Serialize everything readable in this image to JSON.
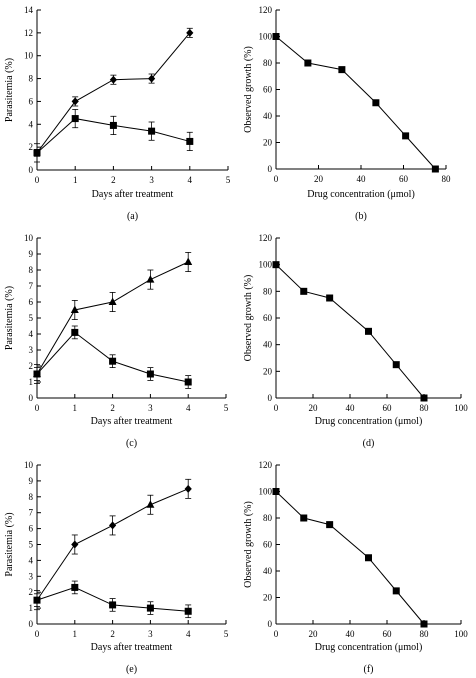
{
  "chart_data": [
    {
      "label": "(a)",
      "type": "line",
      "xlabel": "Days after treatment",
      "ylabel": "Parasitemia (%)",
      "xlim": [
        0,
        5
      ],
      "ylim": [
        0,
        14
      ],
      "xticks": [
        0,
        1,
        2,
        3,
        4,
        5
      ],
      "yticks": [
        0,
        2,
        4,
        6,
        8,
        10,
        12,
        14
      ],
      "series": [
        {
          "marker": "diamond",
          "x": [
            0,
            1,
            2,
            3,
            4
          ],
          "y": [
            1.5,
            6.0,
            7.9,
            8.0,
            12.0
          ],
          "err": [
            0.3,
            0.4,
            0.4,
            0.4,
            0.4
          ]
        },
        {
          "marker": "square",
          "x": [
            0,
            1,
            2,
            3,
            4
          ],
          "y": [
            1.5,
            4.5,
            3.9,
            3.4,
            2.5
          ],
          "err": [
            0.8,
            0.8,
            0.8,
            0.8,
            0.8
          ]
        }
      ]
    },
    {
      "label": "(b)",
      "type": "line",
      "xlabel": "Drug concentration (μmol)",
      "ylabel": "Observed growth (%)",
      "xlim": [
        0,
        80
      ],
      "ylim": [
        0,
        120
      ],
      "xticks": [
        0,
        20,
        40,
        60,
        80
      ],
      "yticks": [
        0,
        20,
        40,
        60,
        80,
        100,
        120
      ],
      "series": [
        {
          "marker": "square",
          "x": [
            0,
            15,
            31,
            47,
            61,
            75
          ],
          "y": [
            100,
            80,
            75,
            50,
            25,
            0
          ]
        }
      ]
    },
    {
      "label": "(c)",
      "type": "line",
      "xlabel": "Days after treatment",
      "ylabel": "Parasitemia (%)",
      "xlim": [
        0,
        5
      ],
      "ylim": [
        0,
        10
      ],
      "xticks": [
        0,
        1,
        2,
        3,
        4,
        5
      ],
      "yticks": [
        0,
        1,
        2,
        3,
        4,
        5,
        6,
        7,
        8,
        9,
        10
      ],
      "series": [
        {
          "marker": "triangle",
          "x": [
            0,
            1,
            2,
            3,
            4
          ],
          "y": [
            1.5,
            5.5,
            6.0,
            7.4,
            8.5
          ],
          "err": [
            0.6,
            0.6,
            0.6,
            0.6,
            0.6
          ]
        },
        {
          "marker": "square",
          "x": [
            0,
            1,
            2,
            3,
            4
          ],
          "y": [
            1.5,
            4.1,
            2.3,
            1.5,
            1.0
          ],
          "err": [
            0.4,
            0.4,
            0.4,
            0.4,
            0.4
          ]
        }
      ]
    },
    {
      "label": "(d)",
      "type": "line",
      "xlabel": "Drug concentration (μmol)",
      "ylabel": "Observed growth (%)",
      "xlim": [
        0,
        100
      ],
      "ylim": [
        0,
        120
      ],
      "xticks": [
        0,
        20,
        40,
        60,
        80,
        100
      ],
      "yticks": [
        0,
        20,
        40,
        60,
        80,
        100,
        120
      ],
      "series": [
        {
          "marker": "square",
          "x": [
            0,
            15,
            29,
            50,
            65,
            80
          ],
          "y": [
            100,
            80,
            75,
            50,
            25,
            0
          ]
        }
      ]
    },
    {
      "label": "(e)",
      "type": "line",
      "xlabel": "Days after treatment",
      "ylabel": "Parasitemia (%)",
      "xlim": [
        0,
        5
      ],
      "ylim": [
        0,
        10
      ],
      "xticks": [
        0,
        1,
        2,
        3,
        4,
        5
      ],
      "yticks": [
        0,
        1,
        2,
        3,
        4,
        5,
        6,
        7,
        8,
        9,
        10
      ],
      "series": [
        {
          "marker": "mixed",
          "markers": [
            "diamond",
            "diamond",
            "diamond",
            "triangle",
            "diamond"
          ],
          "x": [
            0,
            1,
            2,
            3,
            4
          ],
          "y": [
            1.5,
            5.0,
            6.2,
            7.5,
            8.5
          ],
          "err": [
            0.6,
            0.6,
            0.6,
            0.6,
            0.6
          ]
        },
        {
          "marker": "square",
          "x": [
            0,
            1,
            2,
            3,
            4
          ],
          "y": [
            1.5,
            2.3,
            1.2,
            1.0,
            0.8
          ],
          "err": [
            0.4,
            0.4,
            0.4,
            0.4,
            0.4
          ]
        }
      ]
    },
    {
      "label": "(f)",
      "type": "line",
      "xlabel": "Drug concentration (μmol)",
      "ylabel": "Observed growth (%)",
      "xlim": [
        0,
        100
      ],
      "ylim": [
        0,
        120
      ],
      "xticks": [
        0,
        20,
        40,
        60,
        80,
        100
      ],
      "yticks": [
        0,
        20,
        40,
        60,
        80,
        100,
        120
      ],
      "series": [
        {
          "marker": "square",
          "x": [
            0,
            15,
            29,
            50,
            65,
            80
          ],
          "y": [
            100,
            80,
            75,
            50,
            25,
            0
          ]
        }
      ]
    }
  ]
}
